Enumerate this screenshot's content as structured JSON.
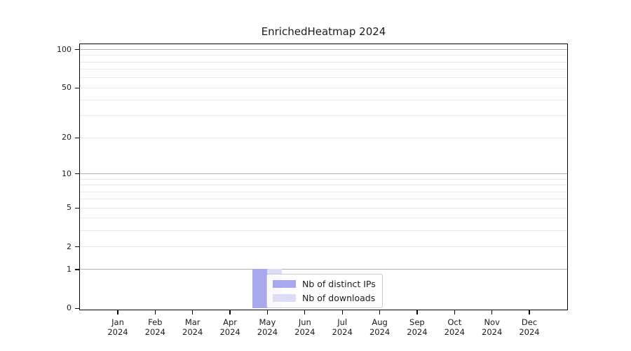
{
  "chart_data": {
    "type": "bar",
    "title": "EnrichedHeatmap 2024",
    "x": {
      "months": [
        "Jan",
        "Feb",
        "Mar",
        "Apr",
        "May",
        "Jun",
        "Jul",
        "Aug",
        "Sep",
        "Oct",
        "Nov",
        "Dec"
      ],
      "year": "2024"
    },
    "series": [
      {
        "name": "Nb of distinct IPs",
        "color": "#a8a8ee",
        "values": [
          0,
          0,
          0,
          0,
          1,
          0,
          0,
          0,
          0,
          0,
          0,
          0
        ]
      },
      {
        "name": "Nb of downloads",
        "color": "#ddddf6",
        "values": [
          0,
          0,
          0,
          0,
          1,
          0,
          0,
          0,
          0,
          0,
          0,
          0
        ]
      }
    ],
    "y_axis": {
      "scale": "log1p",
      "tick_values": [
        0,
        1,
        2,
        5,
        10,
        20,
        50,
        100
      ],
      "major_grid_values": [
        1,
        10,
        100
      ],
      "minor_grid_values": [
        2,
        3,
        4,
        5,
        6,
        7,
        8,
        9,
        20,
        30,
        40,
        50,
        60,
        70,
        80,
        90
      ],
      "range": [
        0,
        110
      ]
    },
    "legend_position": "lower center",
    "grid": "horizontal only",
    "colors": {
      "major_grid": "#b2b2b2",
      "minor_grid": "#e9e9e9",
      "axis": "#000000",
      "text": "#1c1c1c"
    }
  }
}
